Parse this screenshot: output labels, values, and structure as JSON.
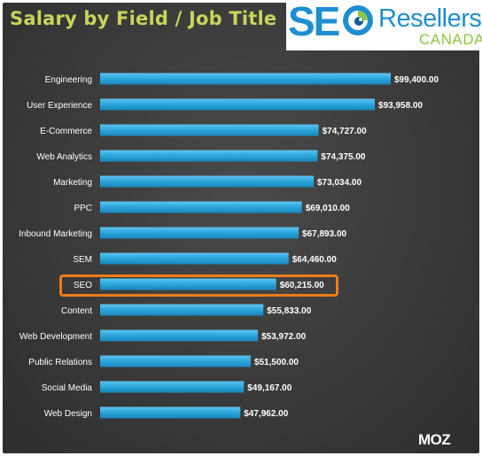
{
  "header": {
    "title": "Salary by Field / Job Title"
  },
  "logo": {
    "seo_text": "SE",
    "resellers_text": "Resellers",
    "canada_text": "CANADA"
  },
  "footer": {
    "brand": "MOZ"
  },
  "colors": {
    "title": "#c9d45a",
    "bar": "#2aa6dc",
    "highlight": "#f07d1a",
    "background": "#3a3a3a"
  },
  "chart_data": {
    "type": "bar",
    "orientation": "horizontal",
    "title": "Salary by Field / Job Title",
    "categories": [
      "Engineering",
      "User Experience",
      "E-Commerce",
      "Web Analytics",
      "Marketing",
      "PPC",
      "Inbound Marketing",
      "SEM",
      "SEO",
      "Content",
      "Web Development",
      "Public Relations",
      "Social Media",
      "Web Design"
    ],
    "values": [
      99400,
      93958,
      74727,
      74375,
      73034,
      69010,
      67893,
      64460,
      60215,
      55833,
      53972,
      51500,
      49167,
      47962
    ],
    "value_labels": [
      "$99,400.00",
      "$93,958.00",
      "$74,727.00",
      "$74,375.00",
      "$73,034.00",
      "$69,010.00",
      "$67,893.00",
      "$64,460.00",
      "$60,215.00",
      "$55,833.00",
      "$53,972.00",
      "$51,500.00",
      "$49,167.00",
      "$47,962.00"
    ],
    "highlighted_category": "SEO",
    "grid": false,
    "legend": "none"
  }
}
